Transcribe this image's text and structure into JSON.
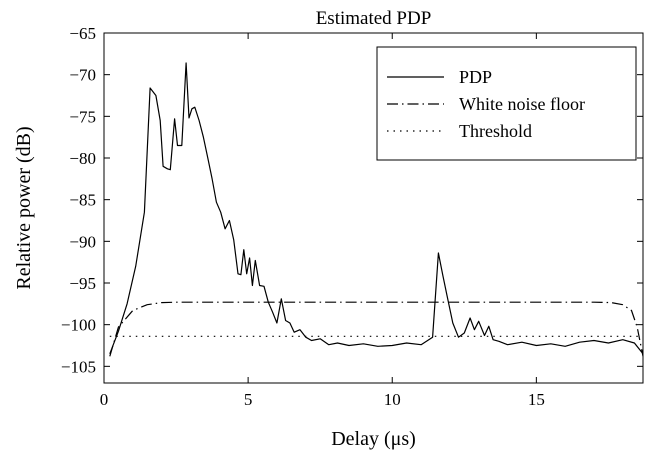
{
  "chart_data": {
    "type": "line",
    "title": "Estimated PDP",
    "xlabel": "Delay (μs)",
    "ylabel": "Relative power (dB)",
    "xlim": [
      0,
      18.7
    ],
    "ylim": [
      -107,
      -65
    ],
    "xticks": [
      0,
      5,
      10,
      15
    ],
    "xtick_labels": [
      "0",
      "5",
      "10",
      "15"
    ],
    "yticks": [
      -65,
      -70,
      -75,
      -80,
      -85,
      -90,
      -95,
      -100,
      -105
    ],
    "ytick_labels": [
      "−65",
      "−70",
      "−75",
      "−80",
      "−85",
      "−90",
      "−95",
      "−100",
      "−105"
    ],
    "grid": false,
    "legend_position": "top-right",
    "legend": [
      "PDP",
      "White noise floor",
      "Threshold"
    ],
    "series": [
      {
        "name": "PDP",
        "style": "solid",
        "x": [
          0.2,
          0.5,
          0.8,
          1.1,
          1.4,
          1.6,
          1.8,
          1.95,
          2.05,
          2.2,
          2.3,
          2.45,
          2.55,
          2.7,
          2.85,
          2.95,
          3.05,
          3.15,
          3.3,
          3.45,
          3.6,
          3.75,
          3.9,
          4.05,
          4.2,
          4.35,
          4.5,
          4.65,
          4.75,
          4.85,
          4.95,
          5.05,
          5.15,
          5.25,
          5.4,
          5.55,
          5.7,
          5.85,
          6.0,
          6.15,
          6.3,
          6.45,
          6.6,
          6.8,
          7.0,
          7.2,
          7.5,
          7.8,
          8.1,
          8.5,
          9.0,
          9.5,
          10.0,
          10.5,
          11.0,
          11.4,
          11.6,
          11.75,
          11.9,
          12.1,
          12.3,
          12.5,
          12.7,
          12.85,
          13.0,
          13.2,
          13.35,
          13.5,
          13.7,
          14.0,
          14.5,
          15.0,
          15.5,
          16.0,
          16.5,
          17.0,
          17.5,
          18.0,
          18.4,
          18.7
        ],
        "y": [
          -103.5,
          -100.8,
          -97.5,
          -93,
          -86.5,
          -71.6,
          -72.5,
          -75.5,
          -81,
          -81.3,
          -81.4,
          -75.3,
          -78.5,
          -78.5,
          -68.6,
          -75.2,
          -74.1,
          -73.9,
          -75.5,
          -77.5,
          -80,
          -82.5,
          -85.3,
          -86.5,
          -88.5,
          -87.5,
          -89.8,
          -93.9,
          -94,
          -91,
          -93.9,
          -92,
          -95.3,
          -92.3,
          -95.3,
          -95.4,
          -97.3,
          -98.5,
          -99.8,
          -96.9,
          -99.5,
          -99.8,
          -100.9,
          -100.6,
          -101.5,
          -101.9,
          -101.7,
          -102.4,
          -102.2,
          -102.5,
          -102.3,
          -102.6,
          -102.5,
          -102.2,
          -102.4,
          -101.5,
          -91.4,
          -94,
          -96.5,
          -99.8,
          -101.5,
          -101,
          -99.2,
          -100.6,
          -99.6,
          -101.3,
          -100.2,
          -101.8,
          -102,
          -102.4,
          -102.1,
          -102.5,
          -102.3,
          -102.6,
          -102.1,
          -101.9,
          -102.2,
          -101.8,
          -102.2,
          -103.5
        ]
      },
      {
        "name": "White noise floor",
        "style": "dash-dot",
        "x": [
          0.2,
          0.5,
          1.0,
          1.5,
          2.0,
          2.5,
          3.0,
          4.0,
          6.0,
          10.0,
          15.0,
          17.0,
          17.6,
          18.0,
          18.3,
          18.5,
          18.7
        ],
        "y": [
          -103.8,
          -100.3,
          -98.3,
          -97.6,
          -97.35,
          -97.3,
          -97.3,
          -97.3,
          -97.3,
          -97.3,
          -97.3,
          -97.3,
          -97.35,
          -97.6,
          -98.3,
          -100.3,
          -103.8
        ]
      },
      {
        "name": "Threshold",
        "style": "dotted",
        "x": [
          0.2,
          18.7
        ],
        "y": [
          -101.4,
          -101.4
        ]
      }
    ]
  }
}
